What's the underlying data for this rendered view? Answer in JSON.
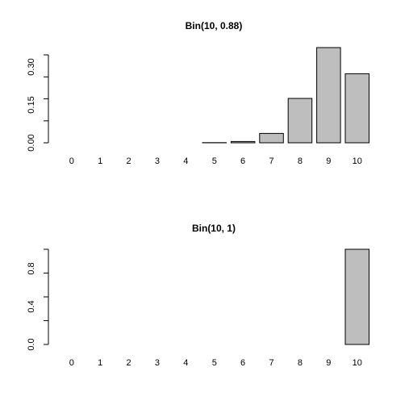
{
  "chart_data": [
    {
      "type": "bar",
      "title": "Bin(10, 0.88)",
      "xlabel": "",
      "ylabel": "",
      "categories": [
        "0",
        "1",
        "2",
        "3",
        "4",
        "5",
        "6",
        "7",
        "8",
        "9",
        "10"
      ],
      "values": [
        0.0,
        0.0,
        0.0,
        0.0,
        3e-05,
        0.0005,
        0.0052,
        0.0376,
        0.179,
        0.3837,
        0.2785
      ],
      "yticks": [
        "0.00",
        "0.15",
        "0.30"
      ],
      "ylim": [
        0,
        0.3837
      ],
      "grid": false,
      "bar_color": "#bebebe"
    },
    {
      "type": "bar",
      "title": "Bin(10, 1)",
      "xlabel": "",
      "ylabel": "",
      "categories": [
        "0",
        "1",
        "2",
        "3",
        "4",
        "5",
        "6",
        "7",
        "8",
        "9",
        "10"
      ],
      "values": [
        0,
        0,
        0,
        0,
        0,
        0,
        0,
        0,
        0,
        0,
        1
      ],
      "yticks": [
        "0.0",
        "0.4",
        "0.8"
      ],
      "ylim": [
        0,
        1
      ],
      "grid": false,
      "bar_color": "#bebebe"
    }
  ]
}
